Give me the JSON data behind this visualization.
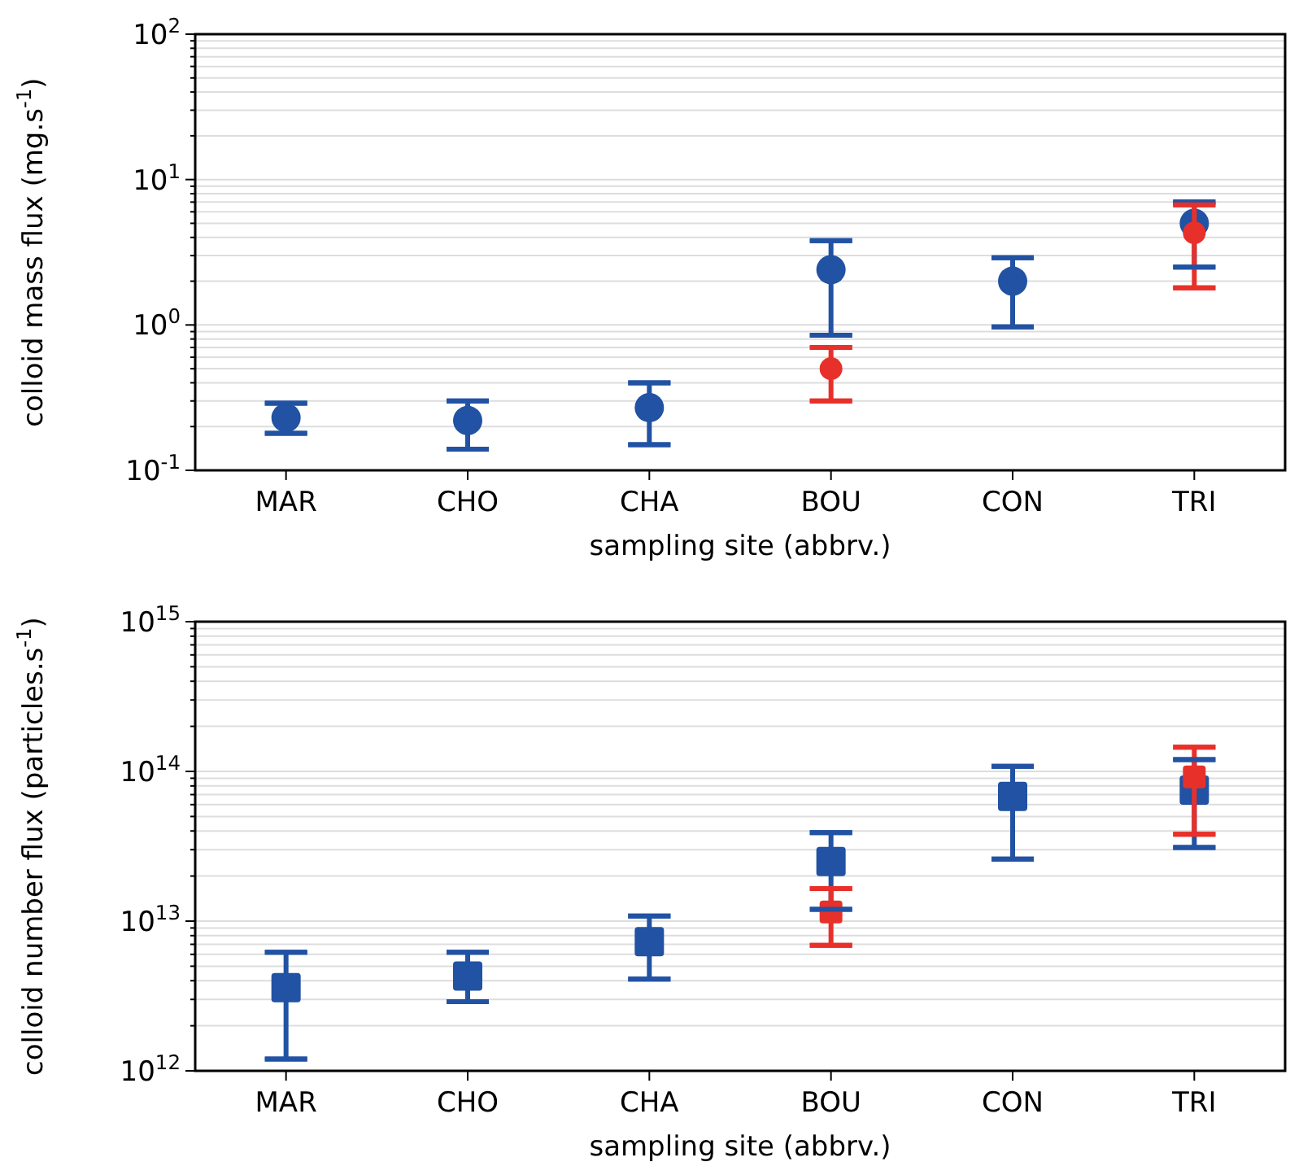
{
  "chart_data": [
    {
      "type": "scatter",
      "xlabel": "sampling site (abbrv.)",
      "ylabel": "colloid mass flux (mg.s$^{-1}$)",
      "categories": [
        "MAR",
        "CHO",
        "CHA",
        "BOU",
        "CON",
        "TRI"
      ],
      "log": "y",
      "grid": "y",
      "marker": "circle",
      "ylim": [
        0.1,
        100
      ],
      "yticks": [
        {
          "value": 0.1,
          "label": "10$^{-1}$"
        },
        {
          "value": 0.2,
          "label": null
        },
        {
          "value": 0.3,
          "label": null
        },
        {
          "value": 0.4,
          "label": null
        },
        {
          "value": 0.5,
          "label": null
        },
        {
          "value": 0.6,
          "label": null
        },
        {
          "value": 0.7,
          "label": null
        },
        {
          "value": 0.8,
          "label": null
        },
        {
          "value": 0.9,
          "label": null
        },
        {
          "value": 1,
          "label": "10$^{0}$"
        },
        {
          "value": 2,
          "label": null
        },
        {
          "value": 3,
          "label": null
        },
        {
          "value": 4,
          "label": null
        },
        {
          "value": 5,
          "label": null
        },
        {
          "value": 6,
          "label": null
        },
        {
          "value": 7,
          "label": null
        },
        {
          "value": 8,
          "label": null
        },
        {
          "value": 9,
          "label": null
        },
        {
          "value": 10,
          "label": "10$^{1}$"
        },
        {
          "value": 20,
          "label": null
        },
        {
          "value": 30,
          "label": null
        },
        {
          "value": 40,
          "label": null
        },
        {
          "value": 50,
          "label": null
        },
        {
          "value": 60,
          "label": null
        },
        {
          "value": 70,
          "label": null
        },
        {
          "value": 80,
          "label": null
        },
        {
          "value": 90,
          "label": null
        },
        {
          "value": 100,
          "label": "10$^{2}$"
        }
      ],
      "series": [
        {
          "color": "#2152a3",
          "values": [
            0.23,
            0.22,
            0.27,
            2.4,
            2.0,
            5.0
          ],
          "errors": [
            [
              0.18,
              0.29
            ],
            [
              0.14,
              0.3
            ],
            [
              0.15,
              0.4
            ],
            [
              0.85,
              3.8
            ],
            [
              0.97,
              2.9
            ],
            [
              2.5,
              7.0
            ]
          ]
        },
        {
          "color": "#e8302a",
          "values": [
            null,
            null,
            null,
            0.5,
            null,
            4.3
          ],
          "errors": [
            null,
            null,
            null,
            [
              0.3,
              0.7
            ],
            null,
            [
              1.8,
              6.7
            ]
          ]
        }
      ]
    },
    {
      "type": "scatter",
      "xlabel": "sampling site (abbrv.)",
      "ylabel": "colloid number flux (particles.s$^{-1}$)",
      "categories": [
        "MAR",
        "CHO",
        "CHA",
        "BOU",
        "CON",
        "TRI"
      ],
      "log": "y",
      "grid": "y",
      "marker": "square",
      "ylim": [
        1000000000000.0,
        1000000000000000.0
      ],
      "yticks": [
        {
          "value": 1000000000000.0,
          "label": "10$^{12}$"
        },
        {
          "value": 2000000000000.0,
          "label": null
        },
        {
          "value": 3000000000000.0,
          "label": null
        },
        {
          "value": 4000000000000.0,
          "label": null
        },
        {
          "value": 5000000000000.0,
          "label": null
        },
        {
          "value": 6000000000000.0,
          "label": null
        },
        {
          "value": 7000000000000.0,
          "label": null
        },
        {
          "value": 8000000000000.0,
          "label": null
        },
        {
          "value": 9000000000000.0,
          "label": null
        },
        {
          "value": 10000000000000.0,
          "label": "10$^{13}$"
        },
        {
          "value": 20000000000000.0,
          "label": null
        },
        {
          "value": 30000000000000.0,
          "label": null
        },
        {
          "value": 40000000000000.0,
          "label": null
        },
        {
          "value": 50000000000000.0,
          "label": null
        },
        {
          "value": 60000000000000.0,
          "label": null
        },
        {
          "value": 70000000000000.0,
          "label": null
        },
        {
          "value": 80000000000000.0,
          "label": null
        },
        {
          "value": 90000000000000.0,
          "label": null
        },
        {
          "value": 100000000000000.0,
          "label": "10$^{14}$"
        },
        {
          "value": 200000000000000.0,
          "label": null
        },
        {
          "value": 300000000000000.0,
          "label": null
        },
        {
          "value": 400000000000000.0,
          "label": null
        },
        {
          "value": 500000000000000.0,
          "label": null
        },
        {
          "value": 600000000000000.0,
          "label": null
        },
        {
          "value": 700000000000000.0,
          "label": null
        },
        {
          "value": 800000000000000.0,
          "label": null
        },
        {
          "value": 900000000000000.0,
          "label": null
        },
        {
          "value": 1000000000000000.0,
          "label": "10$^{15}$"
        }
      ],
      "series": [
        {
          "color": "#2152a3",
          "values": [
            3600000000000.0,
            4300000000000.0,
            7300000000000.0,
            25000000000000.0,
            68000000000000.0,
            75000000000000.0
          ],
          "errors": [
            [
              1200000000000.0,
              6200000000000.0
            ],
            [
              2900000000000.0,
              6200000000000.0
            ],
            [
              4100000000000.0,
              10800000000000.0
            ],
            [
              12000000000000.0,
              39000000000000.0
            ],
            [
              26000000000000.0,
              108000000000000.0
            ],
            [
              31000000000000.0,
              120000000000000.0
            ]
          ]
        },
        {
          "color": "#e8302a",
          "values": [
            null,
            null,
            null,
            11500000000000.0,
            null,
            92000000000000.0
          ],
          "errors": [
            null,
            null,
            null,
            [
              6900000000000.0,
              16500000000000.0
            ],
            null,
            [
              38000000000000.0,
              145000000000000.0
            ]
          ]
        }
      ]
    }
  ]
}
